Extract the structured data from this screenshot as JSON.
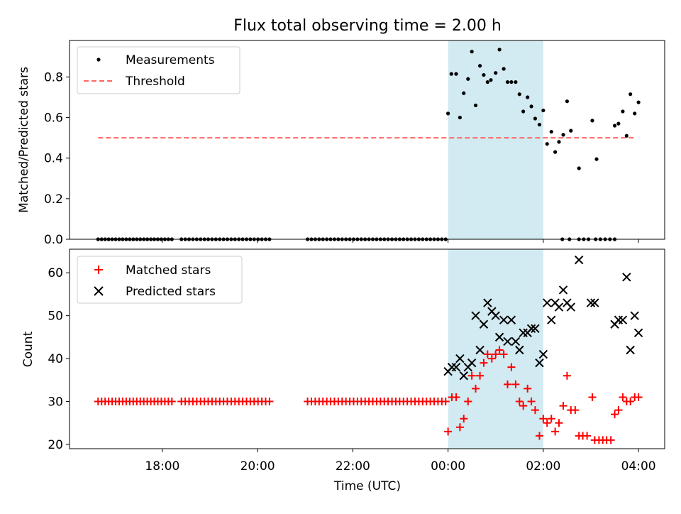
{
  "chart_data": {
    "type": "scatter",
    "title": "Flux total observing time = 2.00 h",
    "x_unit_note": "x values are hours since 00:00 UTC of observing night (negative = previous evening)",
    "x_ticks": [
      {
        "value": -6,
        "label": "18:00"
      },
      {
        "value": -4,
        "label": "20:00"
      },
      {
        "value": -2,
        "label": "22:00"
      },
      {
        "value": 0,
        "label": "00:00"
      },
      {
        "value": 2,
        "label": "02:00"
      },
      {
        "value": 4,
        "label": "04:00"
      }
    ],
    "xlabel": "Time (UTC)",
    "xlim": [
      -7.95,
      4.55
    ],
    "highlight_span": [
      0.0,
      2.0
    ],
    "colors": {
      "highlight": "#add8e6",
      "threshold": "#ff6666",
      "matched": "#ff0000",
      "predicted": "#000000",
      "measure": "#000000"
    },
    "top_panel": {
      "ylabel": "Matched/Predicted stars",
      "ylim": [
        0.0,
        0.98
      ],
      "yticks": [
        "0.0",
        "0.2",
        "0.4",
        "0.6",
        "0.8"
      ],
      "legend": [
        "Measurements",
        "Threshold"
      ],
      "threshold": {
        "value": 0.5,
        "x_range": [
          -7.35,
          3.95
        ]
      },
      "zero_segments": [
        [
          -7.35,
          -5.8,
          22
        ],
        [
          -5.6,
          -3.75,
          24
        ],
        [
          -2.95,
          -0.05,
          37
        ],
        [
          2.4,
          2.55,
          2
        ],
        [
          2.75,
          2.95,
          3
        ],
        [
          3.1,
          3.5,
          5
        ]
      ],
      "measurements": [
        [
          0.0,
          0.62
        ],
        [
          0.07,
          0.815
        ],
        [
          0.17,
          0.815
        ],
        [
          0.25,
          0.6
        ],
        [
          0.33,
          0.72
        ],
        [
          0.42,
          0.79
        ],
        [
          0.5,
          0.925
        ],
        [
          0.58,
          0.66
        ],
        [
          0.67,
          0.855
        ],
        [
          0.75,
          0.81
        ],
        [
          0.83,
          0.775
        ],
        [
          0.9,
          0.785
        ],
        [
          1.0,
          0.82
        ],
        [
          1.08,
          0.935
        ],
        [
          1.17,
          0.84
        ],
        [
          1.25,
          0.775
        ],
        [
          1.33,
          0.775
        ],
        [
          1.42,
          0.775
        ],
        [
          1.5,
          0.715
        ],
        [
          1.58,
          0.63
        ],
        [
          1.67,
          0.7
        ],
        [
          1.75,
          0.655
        ],
        [
          1.83,
          0.595
        ],
        [
          1.92,
          0.565
        ],
        [
          2.0,
          0.635
        ],
        [
          2.08,
          0.47
        ],
        [
          2.17,
          0.53
        ],
        [
          2.25,
          0.43
        ],
        [
          2.33,
          0.48
        ],
        [
          2.42,
          0.515
        ],
        [
          2.5,
          0.68
        ],
        [
          2.58,
          0.535
        ],
        [
          2.75,
          0.35
        ],
        [
          3.03,
          0.585
        ],
        [
          3.12,
          0.395
        ],
        [
          3.5,
          0.56
        ],
        [
          3.58,
          0.57
        ],
        [
          3.67,
          0.63
        ],
        [
          3.75,
          0.51
        ],
        [
          3.83,
          0.715
        ],
        [
          3.92,
          0.62
        ],
        [
          4.0,
          0.675
        ]
      ]
    },
    "bottom_panel": {
      "ylabel": "Count",
      "ylim": [
        19.0,
        65.5
      ],
      "yticks": [
        "20",
        "30",
        "40",
        "50",
        "60"
      ],
      "legend": [
        "Matched stars",
        "Predicted stars"
      ],
      "baseline_segments": [
        [
          -7.35,
          -5.8,
          22,
          30
        ],
        [
          -5.6,
          -3.75,
          24,
          30
        ],
        [
          -2.95,
          -0.05,
          37,
          30
        ]
      ],
      "matched": [
        [
          0.0,
          23
        ],
        [
          0.08,
          31
        ],
        [
          0.17,
          31
        ],
        [
          0.25,
          24
        ],
        [
          0.33,
          26
        ],
        [
          0.42,
          30
        ],
        [
          0.5,
          36
        ],
        [
          0.58,
          33
        ],
        [
          0.67,
          36
        ],
        [
          0.75,
          39
        ],
        [
          0.83,
          41
        ],
        [
          0.92,
          40
        ],
        [
          1.0,
          41
        ],
        [
          1.08,
          42
        ],
        [
          1.17,
          41
        ],
        [
          1.25,
          34
        ],
        [
          1.33,
          38
        ],
        [
          1.42,
          34
        ],
        [
          1.5,
          30
        ],
        [
          1.58,
          29
        ],
        [
          1.67,
          33
        ],
        [
          1.75,
          30
        ],
        [
          1.83,
          28
        ],
        [
          1.92,
          22
        ],
        [
          2.0,
          26
        ],
        [
          2.08,
          25
        ],
        [
          2.17,
          26
        ],
        [
          2.25,
          23
        ],
        [
          2.33,
          25
        ],
        [
          2.42,
          29
        ],
        [
          2.5,
          36
        ],
        [
          2.58,
          28
        ],
        [
          2.67,
          28
        ],
        [
          2.75,
          22
        ],
        [
          2.83,
          22
        ],
        [
          2.92,
          22
        ],
        [
          3.03,
          31
        ],
        [
          3.08,
          21
        ],
        [
          3.17,
          21
        ],
        [
          3.25,
          21
        ],
        [
          3.33,
          21
        ],
        [
          3.42,
          21
        ],
        [
          3.5,
          27
        ],
        [
          3.58,
          28
        ],
        [
          3.67,
          31
        ],
        [
          3.75,
          30
        ],
        [
          3.83,
          30
        ],
        [
          3.92,
          31
        ],
        [
          4.0,
          31
        ]
      ],
      "predicted": [
        [
          0.0,
          37
        ],
        [
          0.08,
          38
        ],
        [
          0.17,
          38
        ],
        [
          0.25,
          40
        ],
        [
          0.33,
          36
        ],
        [
          0.42,
          38
        ],
        [
          0.5,
          39
        ],
        [
          0.58,
          50
        ],
        [
          0.67,
          42
        ],
        [
          0.75,
          48
        ],
        [
          0.83,
          53
        ],
        [
          0.92,
          51
        ],
        [
          1.0,
          50
        ],
        [
          1.08,
          45
        ],
        [
          1.17,
          49
        ],
        [
          1.25,
          44
        ],
        [
          1.33,
          49
        ],
        [
          1.42,
          44
        ],
        [
          1.5,
          42
        ],
        [
          1.58,
          46
        ],
        [
          1.67,
          46
        ],
        [
          1.75,
          47
        ],
        [
          1.83,
          47
        ],
        [
          1.92,
          39
        ],
        [
          2.0,
          41
        ],
        [
          2.08,
          53
        ],
        [
          2.17,
          49
        ],
        [
          2.25,
          53
        ],
        [
          2.33,
          52
        ],
        [
          2.42,
          56
        ],
        [
          2.5,
          53
        ],
        [
          2.58,
          52
        ],
        [
          2.75,
          63
        ],
        [
          3.0,
          53
        ],
        [
          3.08,
          53
        ],
        [
          3.5,
          48
        ],
        [
          3.58,
          49
        ],
        [
          3.67,
          49
        ],
        [
          3.75,
          59
        ],
        [
          3.83,
          42
        ],
        [
          3.92,
          50
        ],
        [
          4.0,
          46
        ]
      ]
    }
  }
}
